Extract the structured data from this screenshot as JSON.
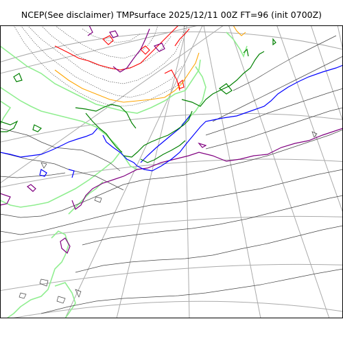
{
  "title": "NCEP(See disclaimer) TMPsurface 2025/12/11 00Z FT=96 (init 0700Z)",
  "map": {
    "variable": "TMPsurface",
    "valid_time": "2025/12/11 00Z",
    "forecast_hour": 96,
    "init": "0700Z",
    "projection": "polar-stereographic",
    "colors": {
      "frame": "#000000",
      "graticule": "#aaaaaa",
      "coastline_light": "#90ee90",
      "contour_green": "#008000",
      "contour_blue": "#0000ff",
      "contour_purple": "#800080",
      "contour_red": "#ff0000",
      "contour_orange": "#ffa500",
      "contour_gray": "#444444"
    }
  }
}
